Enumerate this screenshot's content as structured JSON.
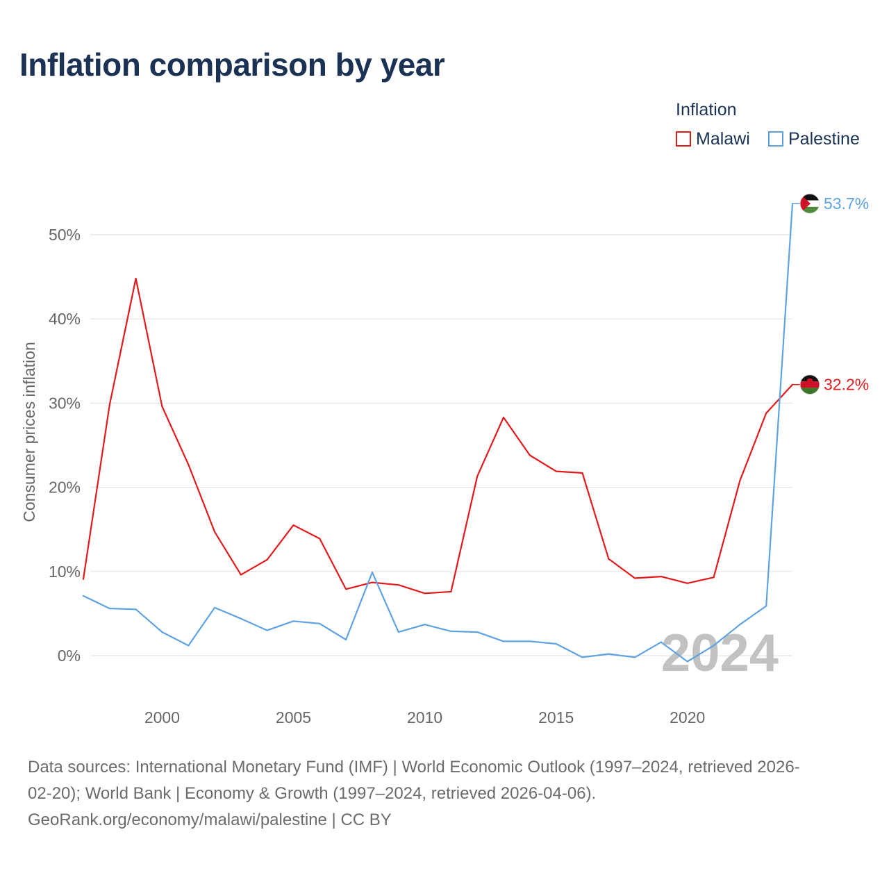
{
  "title": "Inflation comparison by year",
  "legend": {
    "title": "Inflation",
    "items": [
      {
        "label": "Malawi",
        "color": "#e31a1c"
      },
      {
        "label": "Palestine",
        "color": "#5fa2e0"
      }
    ]
  },
  "chart_data": {
    "type": "line",
    "title": "Inflation comparison by year",
    "xlabel": "",
    "ylabel": "Consumer prices inflation",
    "x": [
      1997,
      1998,
      1999,
      2000,
      2001,
      2002,
      2003,
      2004,
      2005,
      2006,
      2007,
      2008,
      2009,
      2010,
      2011,
      2012,
      2013,
      2014,
      2015,
      2016,
      2017,
      2018,
      2019,
      2020,
      2021,
      2022,
      2023,
      2024
    ],
    "xlim": [
      1997,
      2024
    ],
    "ylim": [
      -5,
      55
    ],
    "x_ticks": [
      2000,
      2005,
      2010,
      2015,
      2020
    ],
    "y_ticks": [
      0,
      10,
      20,
      30,
      40,
      50
    ],
    "y_tick_labels": [
      "0%",
      "10%",
      "20%",
      "30%",
      "40%",
      "50%"
    ],
    "grid": true,
    "series": [
      {
        "name": "Malawi",
        "color": "#e31a1c",
        "values": [
          9.1,
          29.8,
          44.8,
          29.6,
          22.7,
          14.7,
          9.6,
          11.4,
          15.5,
          13.9,
          7.9,
          8.7,
          8.4,
          7.4,
          7.6,
          21.3,
          28.3,
          23.8,
          21.9,
          21.7,
          11.5,
          9.2,
          9.4,
          8.6,
          9.3,
          20.8,
          28.8,
          32.2
        ],
        "end_label": "32.2%",
        "flag": "malawi"
      },
      {
        "name": "Palestine",
        "color": "#5fa2e0",
        "values": [
          7.1,
          5.6,
          5.5,
          2.8,
          1.2,
          5.7,
          4.4,
          3.0,
          4.1,
          3.8,
          1.9,
          9.9,
          2.8,
          3.7,
          2.9,
          2.8,
          1.7,
          1.7,
          1.4,
          -0.2,
          0.2,
          -0.2,
          1.6,
          -0.7,
          1.2,
          3.7,
          5.9,
          53.7
        ],
        "end_label": "53.7%",
        "flag": "palestine"
      }
    ],
    "year_watermark": "2024"
  },
  "source": {
    "line1": "Data sources: International Monetary Fund (IMF) | World Economic Outlook (1997–2024, retrieved 2026-",
    "line2": "02-20); World Bank | Economy & Growth (1997–2024, retrieved 2026-04-06).",
    "line3": "GeoRank.org/economy/malawi/palestine | CC BY"
  }
}
